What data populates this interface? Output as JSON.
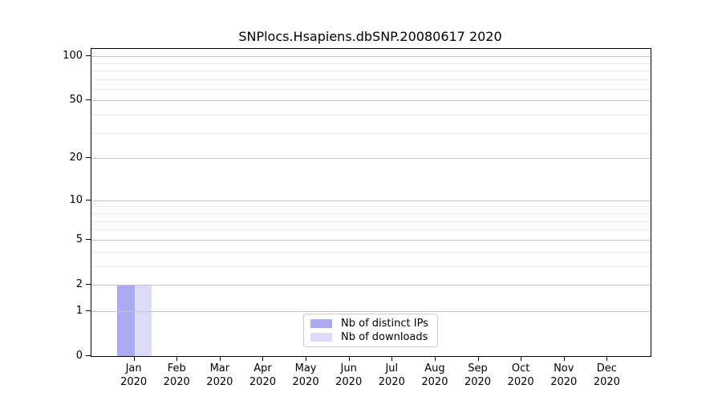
{
  "chart_data": {
    "type": "bar",
    "title": "SNPlocs.Hsapiens.dbSNP.20080617 2020",
    "categories": [
      "Jan",
      "Feb",
      "Mar",
      "Apr",
      "May",
      "Jun",
      "Jul",
      "Aug",
      "Sep",
      "Oct",
      "Nov",
      "Dec"
    ],
    "category_sublabel": "2020",
    "series": [
      {
        "name": "Nb of distinct IPs",
        "color": "#aaaaf0",
        "values": [
          2,
          0,
          0,
          0,
          0,
          0,
          0,
          0,
          0,
          0,
          0,
          0
        ]
      },
      {
        "name": "Nb of downloads",
        "color": "#dcdcf8",
        "values": [
          2,
          0,
          0,
          0,
          0,
          0,
          0,
          0,
          0,
          0,
          0,
          0
        ]
      }
    ],
    "xlabel": "",
    "ylabel": "",
    "yscale": "log10(1+y)",
    "ylim": [
      0,
      112
    ],
    "yticks_major": [
      0,
      1,
      2,
      5,
      10,
      20,
      50,
      100
    ],
    "yticks_minor": [
      3,
      4,
      6,
      7,
      8,
      9,
      30,
      40,
      60,
      70,
      80,
      90
    ],
    "grid": "horizontal major and minor gridlines",
    "legend_position": "inside bottom-center",
    "colors": {
      "major_grid": "#c6c6c6",
      "minor_grid": "#e9e9e9",
      "spine": "#000000",
      "background": "#ffffff"
    }
  }
}
